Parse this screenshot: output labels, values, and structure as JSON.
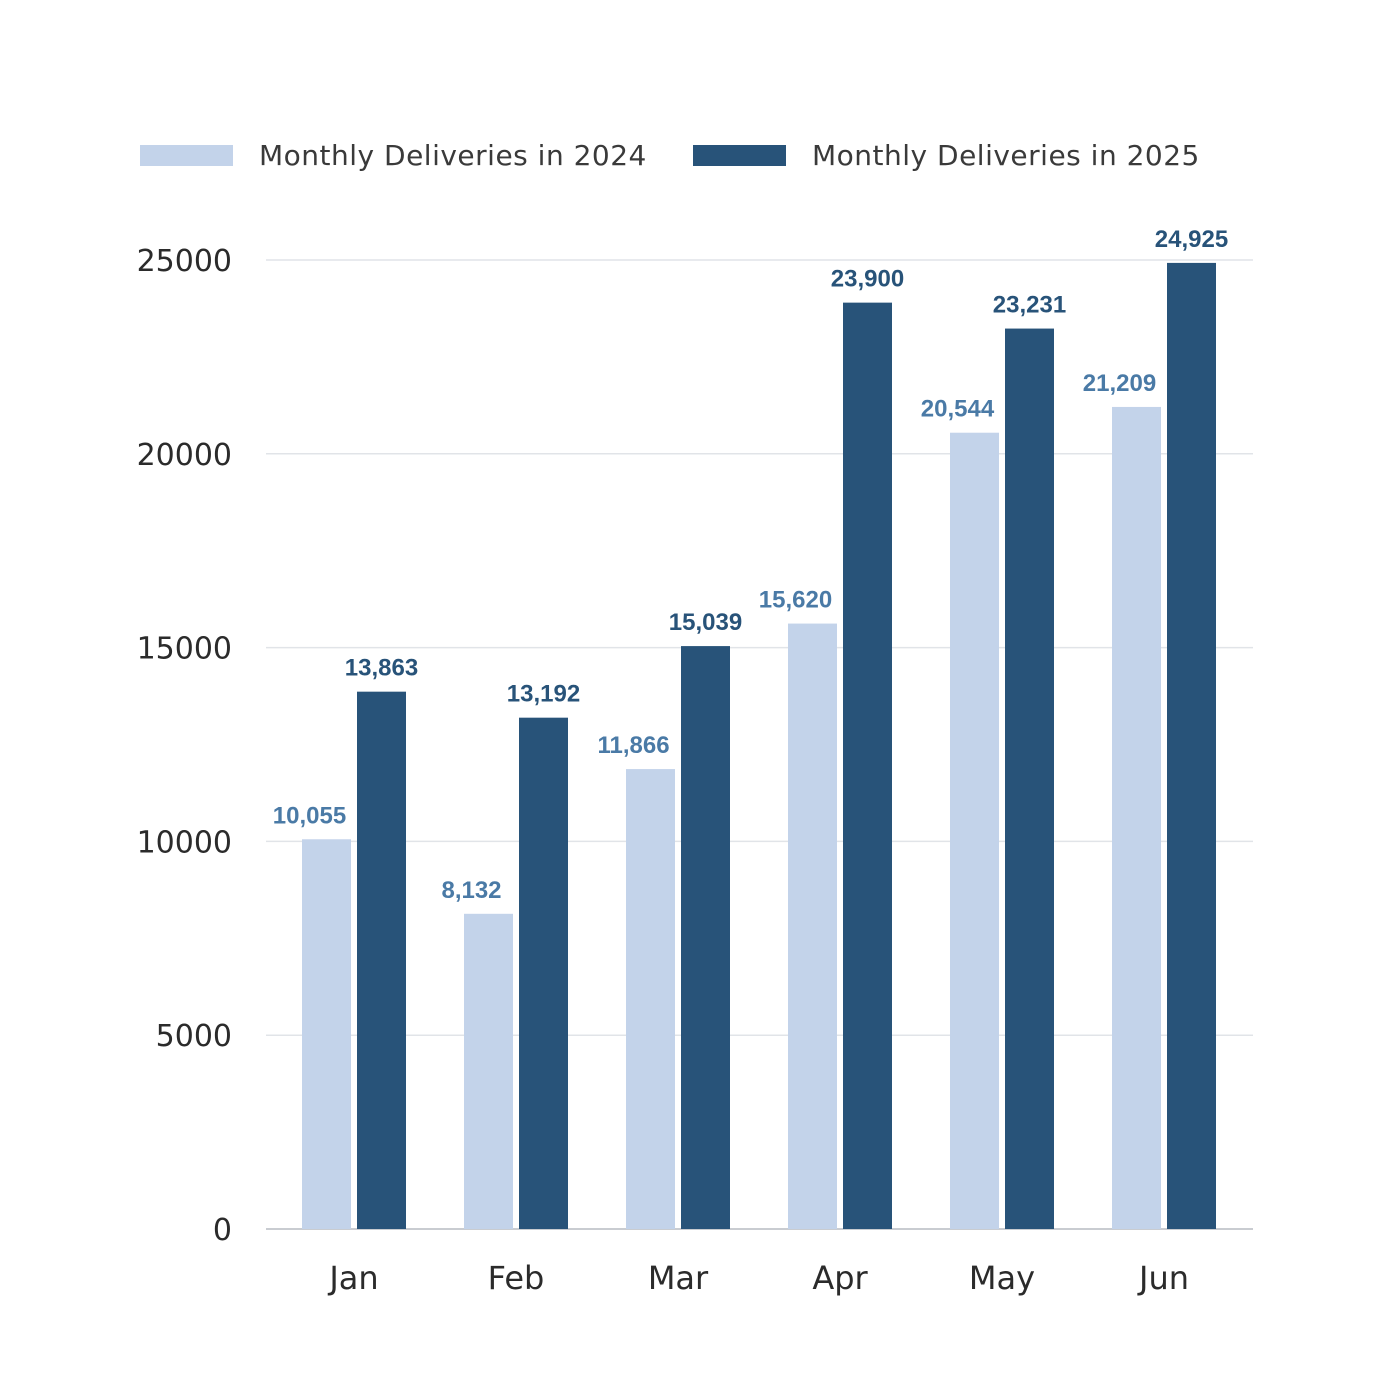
{
  "chart_data": {
    "type": "bar",
    "categories": [
      "Jan",
      "Feb",
      "Mar",
      "Apr",
      "May",
      "Jun"
    ],
    "series": [
      {
        "name": "Monthly Deliveries in 2024",
        "color": "#c3d3ea",
        "label_color": "#4a7aa6",
        "values": [
          10055,
          8132,
          11866,
          15620,
          20544,
          21209
        ],
        "labels": [
          "10,055",
          "8,132",
          "11,866",
          "15,620",
          "20,544",
          "21,209"
        ]
      },
      {
        "name": "Monthly Deliveries in 2025",
        "color": "#285379",
        "label_color": "#285379",
        "values": [
          13863,
          13192,
          15039,
          23900,
          23231,
          24925
        ],
        "labels": [
          "13,863",
          "13,192",
          "15,039",
          "23,900",
          "23,231",
          "24,925"
        ]
      }
    ],
    "yticks": [
      "0",
      "5000",
      "10000",
      "15000",
      "20000",
      "25000"
    ],
    "ylim": [
      0,
      25000
    ],
    "title": "",
    "xlabel": "",
    "ylabel": "",
    "grid": true,
    "legend_position": "top"
  }
}
